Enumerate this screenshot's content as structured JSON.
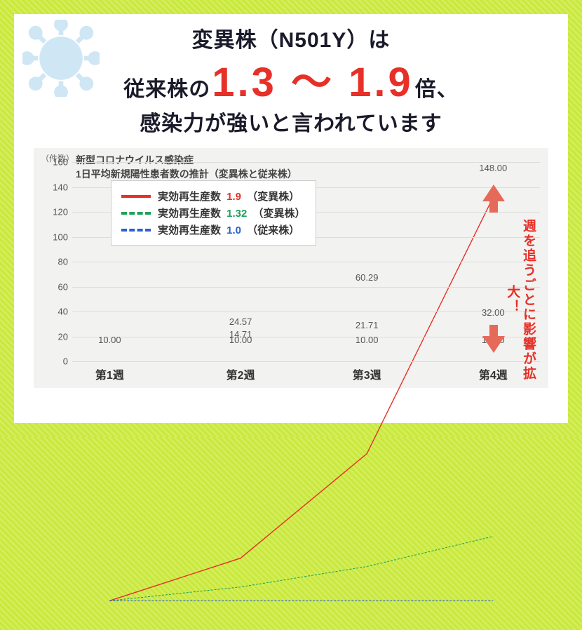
{
  "headline": {
    "line1": "変異株（N501Y）は",
    "line2_pre": "従来株の",
    "line2_big": "1.3 〜 1.9",
    "line2_post": "倍、",
    "line3": "感染力が強いと言われています",
    "big_color": "#e63028"
  },
  "chart": {
    "type": "line",
    "title_l1": "新型コロナウイルス感染症",
    "title_l2": "1日平均新規陽性患者数の推計（変異株と従来株）",
    "y_unit": "（件数）",
    "background_color": "#f2f2f0",
    "grid_color": "#dcdcdc",
    "ylim": [
      0,
      160
    ],
    "ytick_step": 20,
    "yticks": [
      "0",
      "20",
      "40",
      "60",
      "80",
      "100",
      "120",
      "140",
      "160"
    ],
    "x_categories": [
      "第1週",
      "第2週",
      "第3週",
      "第4週"
    ],
    "x_positions_pct": [
      8,
      36,
      63,
      90
    ],
    "series": [
      {
        "name": "variant-1.9",
        "label_prefix": "実効再生産数",
        "label_num": "1.9",
        "label_suffix": "（変異株）",
        "color": "#e63028",
        "dash": "solid",
        "width": 4,
        "values": [
          10.0,
          24.57,
          60.29,
          148.0
        ],
        "point_labels": [
          "10.00",
          "24.57",
          "60.29",
          "148.00"
        ]
      },
      {
        "name": "variant-1.32",
        "label_prefix": "実効再生産数",
        "label_num": "1.32",
        "label_suffix": "（変異株）",
        "color": "#1fa05a",
        "dash": "dashed",
        "width": 3,
        "values": [
          10.0,
          14.71,
          21.71,
          32.0
        ],
        "point_labels": [
          "",
          "14.71",
          "21.71",
          "32.00"
        ]
      },
      {
        "name": "conventional-1.0",
        "label_prefix": "実効再生産数",
        "label_num": "1.0",
        "label_suffix": "（従来株）",
        "color": "#2a5fd0",
        "dash": "dashed",
        "width": 3,
        "values": [
          10.0,
          10.0,
          10.0,
          10.0
        ],
        "point_labels": [
          "",
          "10.00",
          "10.00",
          "10.00"
        ]
      }
    ],
    "annotation": "週を追うごとに影響が拡大！",
    "annotation_color": "#e63028"
  }
}
